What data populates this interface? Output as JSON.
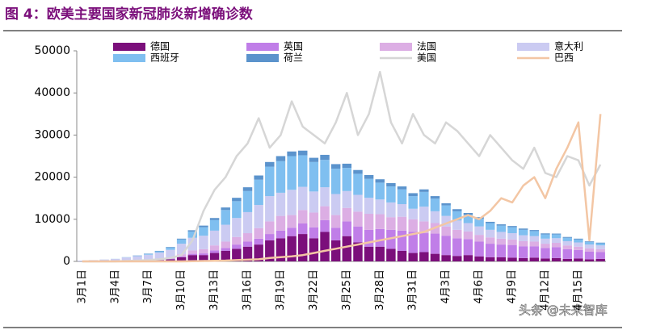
{
  "chart_data": {
    "type": "stacked-bar-line",
    "title": "图 4：欧美主要国家新冠肺炎新增确诊数",
    "watermark": "头条 @未来智库",
    "categories": [
      "3月1日",
      null,
      null,
      "3月4日",
      null,
      null,
      "3月7日",
      null,
      null,
      "3月10日",
      null,
      null,
      "3月13日",
      null,
      null,
      "3月16日",
      null,
      null,
      "3月19日",
      null,
      null,
      "3月22日",
      null,
      null,
      "3月25日",
      null,
      null,
      "3月28日",
      null,
      null,
      "3月31日",
      null,
      null,
      "4月3日",
      null,
      null,
      "4月6日",
      null,
      null,
      "4月9日",
      null,
      null,
      "4月12日",
      null,
      null,
      "4月15日",
      null,
      null
    ],
    "series": [
      {
        "name": "德国",
        "kind": "bar",
        "color": "#7b0f7b",
        "values": [
          0,
          0,
          10,
          20,
          50,
          100,
          150,
          300,
          500,
          1000,
          1500,
          1500,
          2000,
          2500,
          3000,
          3500,
          4000,
          5000,
          5500,
          6000,
          6500,
          5500,
          7000,
          5000,
          6000,
          4500,
          3500,
          3500,
          3000,
          2500,
          2000,
          2200,
          1800,
          1500,
          1300,
          1500,
          1200,
          1000,
          1000,
          900,
          800,
          900,
          700,
          800,
          600,
          700,
          500,
          600
        ]
      },
      {
        "name": "英国",
        "kind": "bar",
        "color": "#c07ee8",
        "values": [
          0,
          0,
          10,
          20,
          30,
          50,
          80,
          100,
          150,
          200,
          300,
          400,
          600,
          700,
          1000,
          1200,
          1400,
          1500,
          1800,
          2000,
          2500,
          2600,
          2800,
          3000,
          3500,
          3800,
          4000,
          4200,
          4500,
          4800,
          5000,
          4500,
          4800,
          4600,
          4200,
          3800,
          3500,
          3200,
          3000,
          3000,
          2800,
          2700,
          2500,
          2600,
          2300,
          2000,
          1800,
          1600
        ]
      },
      {
        "name": "法国",
        "kind": "bar",
        "color": "#dcaee4",
        "values": [
          0,
          10,
          20,
          30,
          50,
          100,
          150,
          200,
          300,
          500,
          800,
          1000,
          1200,
          1500,
          1800,
          2000,
          2500,
          3000,
          3500,
          3000,
          3200,
          3500,
          3300,
          3000,
          3200,
          3500,
          3800,
          3500,
          3000,
          3300,
          3000,
          2800,
          2500,
          2200,
          2000,
          1800,
          1600,
          1500,
          1400,
          1300,
          1200,
          1100,
          1000,
          1000,
          900,
          800,
          800,
          700
        ]
      },
      {
        "name": "意大利",
        "kind": "bar",
        "color": "#cbcbf2",
        "values": [
          200,
          300,
          400,
          500,
          800,
          1000,
          1200,
          1500,
          1800,
          2500,
          3000,
          3200,
          3500,
          4000,
          4500,
          5000,
          5500,
          6000,
          5500,
          6000,
          5500,
          5000,
          4500,
          5000,
          4000,
          4000,
          3800,
          3500,
          3500,
          3000,
          2500,
          3500,
          2800,
          2500,
          2200,
          2000,
          2000,
          1800,
          1600,
          1500,
          1400,
          1300,
          1200,
          1100,
          1000,
          1000,
          900,
          900
        ]
      },
      {
        "name": "西班牙",
        "kind": "bar",
        "color": "#7fbff0",
        "values": [
          0,
          0,
          10,
          20,
          50,
          100,
          200,
          300,
          500,
          1000,
          1500,
          2000,
          2500,
          3500,
          4000,
          5000,
          6000,
          7000,
          7500,
          8000,
          7500,
          7000,
          6500,
          6000,
          5500,
          5000,
          4500,
          4000,
          3800,
          3500,
          3000,
          3500,
          3000,
          2500,
          2200,
          2000,
          1800,
          1600,
          1500,
          1400,
          1300,
          1200,
          1000,
          900,
          800,
          700,
          600,
          500
        ]
      },
      {
        "name": "荷兰",
        "kind": "bar",
        "color": "#5b93cc",
        "values": [
          0,
          0,
          0,
          10,
          20,
          50,
          80,
          100,
          150,
          200,
          300,
          400,
          500,
          600,
          800,
          900,
          1000,
          1100,
          1200,
          1100,
          1100,
          1000,
          1200,
          1100,
          1000,
          900,
          900,
          800,
          800,
          700,
          700,
          600,
          600,
          500,
          500,
          400,
          400,
          300,
          300,
          300,
          300,
          250,
          250,
          200,
          200,
          200,
          150,
          150
        ]
      },
      {
        "name": "美国",
        "kind": "line",
        "color": "#d6d6d6",
        "values": [
          0,
          0,
          0,
          0,
          100,
          200,
          300,
          500,
          800,
          1500,
          5000,
          12000,
          17000,
          20000,
          25000,
          28000,
          34000,
          27000,
          30000,
          38000,
          32000,
          30000,
          28000,
          33000,
          40000,
          30000,
          35000,
          45000,
          33000,
          28000,
          35000,
          30000,
          28000,
          33000,
          31000,
          28000,
          25000,
          30000,
          27000,
          24000,
          22000,
          27000,
          21000,
          20000,
          25000,
          24000,
          18000,
          23000
        ]
      },
      {
        "name": "巴西",
        "kind": "line",
        "color": "#f3c6a4",
        "values": [
          0,
          0,
          0,
          0,
          0,
          0,
          0,
          0,
          0,
          0,
          50,
          100,
          150,
          200,
          300,
          400,
          500,
          800,
          1000,
          1200,
          1500,
          2000,
          2500,
          3000,
          3500,
          4000,
          4500,
          5000,
          5500,
          6000,
          6500,
          7000,
          8000,
          9000,
          10000,
          11000,
          10000,
          12000,
          15000,
          14000,
          18000,
          20000,
          15000,
          22000,
          27000,
          33000,
          5000,
          35000
        ]
      }
    ],
    "ylim": [
      0,
      50000
    ],
    "yticks": [
      0,
      10000,
      20000,
      30000,
      40000,
      50000
    ]
  }
}
